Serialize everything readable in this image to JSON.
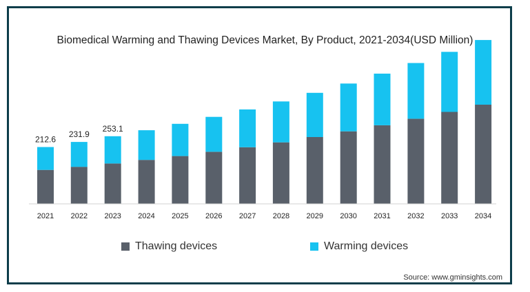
{
  "chart_data": {
    "type": "bar",
    "stacked": true,
    "title": "Biomedical Warming and Thawing Devices Market, By Product, 2021-2034(USD Million)",
    "categories": [
      "2021",
      "2022",
      "2023",
      "2024",
      "2025",
      "2026",
      "2027",
      "2028",
      "2029",
      "2030",
      "2031",
      "2032",
      "2033",
      "2034"
    ],
    "series": [
      {
        "name": "Thawing devices",
        "color": "#59606a",
        "values": [
          127.0,
          138.6,
          150.9,
          164.5,
          179.0,
          194.7,
          211.8,
          230.2,
          250.1,
          271.5,
          294.2,
          318.5,
          344.1,
          371.2
        ]
      },
      {
        "name": "Warming devices",
        "color": "#17c2f0",
        "values": [
          85.6,
          93.3,
          102.2,
          111.1,
          120.6,
          130.8,
          141.6,
          153.2,
          165.6,
          178.9,
          193.3,
          208.6,
          224.9,
          242.2
        ]
      }
    ],
    "total_labels": [
      "212.6",
      "231.9",
      "253.1"
    ],
    "ylim": [
      0,
      660
    ],
    "legend_position": "bottom",
    "grid": false
  },
  "source": "Source: www.gminsights.com"
}
